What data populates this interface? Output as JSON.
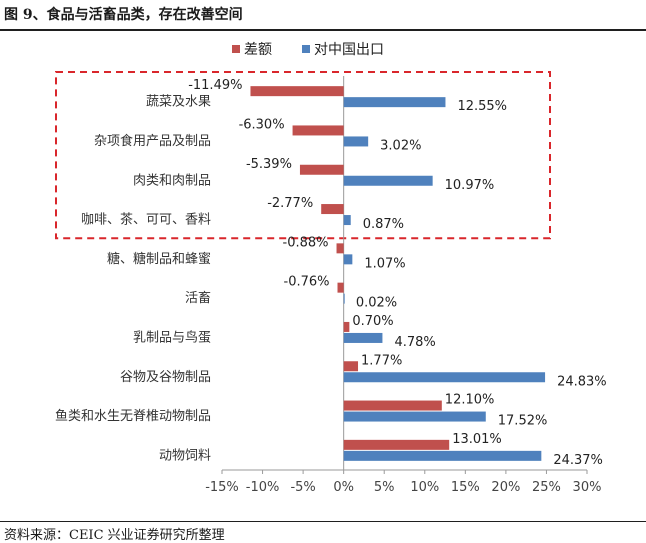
{
  "figure_title": "图 9、食品与活畜品类，存在改善空间",
  "source_note": "资料来源：CEIC   兴业证券研究所整理",
  "chart_data": {
    "type": "bar",
    "orientation": "horizontal",
    "categories": [
      "蔬菜及水果",
      "杂项食用产品及制品",
      "肉类和肉制品",
      "咖啡、茶、可可、香料",
      "糖、糖制品和蜂蜜",
      "活畜",
      "乳制品与鸟蛋",
      "谷物及谷物制品",
      "鱼类和水生无脊椎动物制品",
      "动物饲料"
    ],
    "series": [
      {
        "name": "差额",
        "color": "#c0504d",
        "values": [
          -11.49,
          -6.3,
          -5.39,
          -2.77,
          -0.88,
          -0.76,
          0.7,
          1.77,
          12.1,
          13.01
        ],
        "labels": [
          "-11.49%",
          "-6.30%",
          "-5.39%",
          "-2.77%",
          "-0.88%",
          "-0.76%",
          "0.70%",
          "1.77%",
          "12.10%",
          "13.01%"
        ]
      },
      {
        "name": "对中国出口",
        "color": "#4f81bd",
        "values": [
          12.55,
          3.02,
          10.97,
          0.87,
          1.07,
          0.02,
          4.78,
          24.83,
          17.52,
          24.37
        ],
        "labels": [
          "12.55%",
          "3.02%",
          "10.97%",
          "0.87%",
          "1.07%",
          "0.02%",
          "4.78%",
          "24.83%",
          "17.52%",
          "24.37%"
        ]
      }
    ],
    "xlim": [
      -15,
      30
    ],
    "xticks": [
      -15,
      -10,
      -5,
      0,
      5,
      10,
      15,
      20,
      25,
      30
    ],
    "xtick_labels": [
      "-15%",
      "-10%",
      "-5%",
      "0%",
      "5%",
      "10%",
      "15%",
      "20%",
      "25%",
      "30%"
    ],
    "legend_position": "top-center",
    "grid": false,
    "highlight": {
      "description_categories": [
        "蔬菜及水果",
        "杂项食用产品及制品",
        "肉类和肉制品",
        "咖啡、茶、可可、香料"
      ],
      "color": "#d9262b",
      "style": "dashed"
    }
  }
}
